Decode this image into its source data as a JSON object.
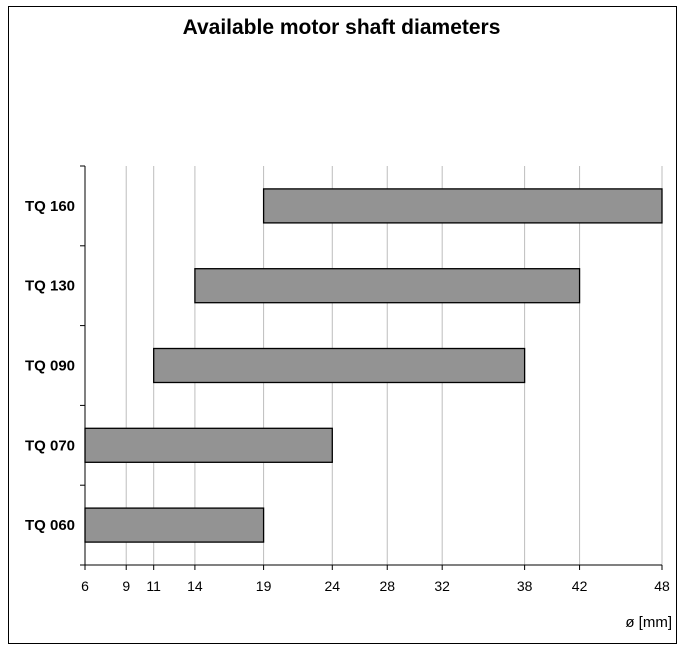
{
  "chart_data": {
    "type": "bar",
    "orientation": "horizontal",
    "title": "Available motor shaft diameters",
    "xlabel": "ø [mm]",
    "ylabel": "",
    "x_ticks": [
      6,
      9,
      11,
      14,
      19,
      24,
      28,
      32,
      38,
      42,
      48
    ],
    "categories": [
      "TQ 060",
      "TQ 070",
      "TQ 090",
      "TQ 130",
      "TQ 160"
    ],
    "ranges": [
      [
        6,
        19
      ],
      [
        6,
        24
      ],
      [
        11,
        38
      ],
      [
        14,
        42
      ],
      [
        19,
        48
      ]
    ],
    "grid": true,
    "colors": {
      "bar_fill": "#939393",
      "bar_stroke": "#000000",
      "grid": "#bdbdbd",
      "axis": "#000000"
    }
  }
}
